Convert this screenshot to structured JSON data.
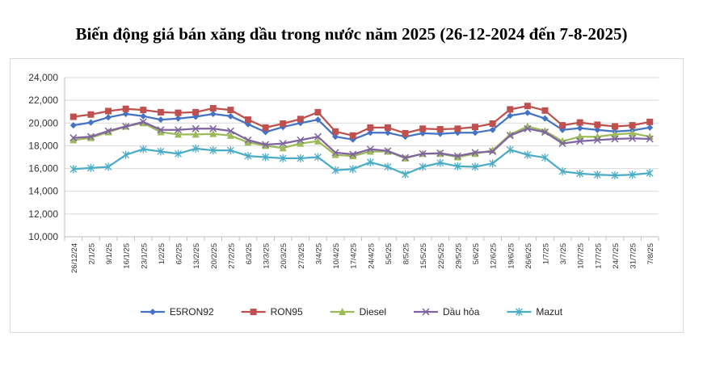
{
  "chart_data": {
    "type": "line",
    "title": "Biến động giá bán xăng dầu trong nước năm 2025 (26-12-2024 đến 7-8-2025)",
    "xlabel": "",
    "ylabel": "",
    "ylim": [
      10000,
      24000
    ],
    "yticks": [
      "10,000",
      "12,000",
      "14,000",
      "16,000",
      "18,000",
      "20,000",
      "22,000",
      "24,000"
    ],
    "ytick_values": [
      10000,
      12000,
      14000,
      16000,
      18000,
      20000,
      22000,
      24000
    ],
    "grid": true,
    "legend_position": "bottom",
    "categories": [
      "26/12/24",
      "2/1/25",
      "9/1/25",
      "16/1/25",
      "23/1/25",
      "1/2/25",
      "6/2/25",
      "13/2/25",
      "20/2/25",
      "27/2/25",
      "6/3/25",
      "13/3/25",
      "20/3/25",
      "27/3/25",
      "3/4/25",
      "10/4/25",
      "17/4/25",
      "24/4/25",
      "5/5/25",
      "8/5/25",
      "15/5/25",
      "22/5/25",
      "29/5/25",
      "5/6/25",
      "12/6/25",
      "19/6/25",
      "26/6/25",
      "1/7/25",
      "3/7/25",
      "10/7/25",
      "17/7/25",
      "24/7/25",
      "31/7/25",
      "7/8/25"
    ],
    "series": [
      {
        "name": "E5RON92",
        "color": "#4472c4",
        "marker": "diamond",
        "values": [
          19800,
          20050,
          20500,
          20800,
          20600,
          20300,
          20400,
          20550,
          20800,
          20600,
          19900,
          19200,
          19650,
          20000,
          20300,
          18800,
          18550,
          19150,
          19150,
          18800,
          19100,
          19050,
          19150,
          19150,
          19400,
          20650,
          20900,
          20400,
          19400,
          19550,
          19400,
          19250,
          19350,
          19600
        ]
      },
      {
        "name": "RON95",
        "color": "#c0504d",
        "marker": "square",
        "values": [
          20550,
          20750,
          21050,
          21250,
          21150,
          20950,
          20900,
          20950,
          21300,
          21150,
          20300,
          19600,
          19950,
          20350,
          20950,
          19250,
          18900,
          19600,
          19600,
          19100,
          19500,
          19450,
          19500,
          19650,
          19950,
          21200,
          21500,
          21100,
          19800,
          20050,
          19850,
          19700,
          19800,
          20100
        ]
      },
      {
        "name": "Diesel",
        "color": "#9bbb59",
        "marker": "triangle",
        "values": [
          18500,
          18700,
          19200,
          19700,
          20000,
          19200,
          19000,
          19000,
          19050,
          18900,
          18300,
          18000,
          17800,
          18200,
          18400,
          17200,
          17100,
          17500,
          17500,
          16900,
          17300,
          17300,
          17000,
          17300,
          17600,
          19000,
          19700,
          19300,
          18400,
          18800,
          18800,
          19000,
          19100,
          18800
        ]
      },
      {
        "name": "Dầu hỏa",
        "color": "#8064a2",
        "marker": "x",
        "values": [
          18700,
          18800,
          19300,
          19700,
          20100,
          19400,
          19400,
          19500,
          19500,
          19300,
          18500,
          18100,
          18200,
          18500,
          18800,
          17400,
          17250,
          17700,
          17550,
          16950,
          17300,
          17350,
          17100,
          17400,
          17500,
          18900,
          19500,
          19200,
          18200,
          18400,
          18500,
          18600,
          18650,
          18600
        ]
      },
      {
        "name": "Mazut",
        "color": "#4bacc6",
        "marker": "asterisk",
        "values": [
          15950,
          16050,
          16150,
          17200,
          17700,
          17500,
          17300,
          17750,
          17600,
          17600,
          17100,
          17000,
          16900,
          16900,
          17000,
          15850,
          15950,
          16550,
          16150,
          15500,
          16150,
          16500,
          16200,
          16150,
          16450,
          17650,
          17200,
          16950,
          15750,
          15550,
          15450,
          15400,
          15450,
          15600
        ]
      }
    ]
  }
}
